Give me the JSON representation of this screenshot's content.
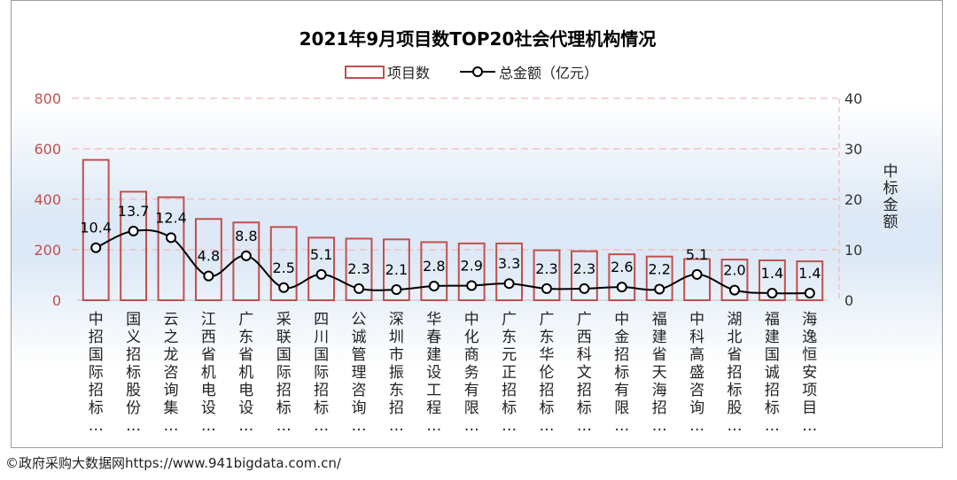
{
  "chart_data": {
    "type": "bar",
    "title": "2021年9月项目数TOP20社会代理机构情况",
    "legend": {
      "bar_label": "项目数",
      "line_label": "总金额（亿元）",
      "placement": "top"
    },
    "ylabel_right": "中标金额",
    "ylim_left": [
      0,
      800
    ],
    "ylim_right": [
      0,
      40
    ],
    "yticks_left": [
      "0",
      "200",
      "400",
      "600",
      "800"
    ],
    "yticks_right": [
      "0",
      "10",
      "20",
      "30",
      "40"
    ],
    "grid": true,
    "categories": [
      "中招国际招标…",
      "国义招标股份…",
      "云之龙咨询集…",
      "江西省机电设…",
      "广东省机电设…",
      "采联国际招标…",
      "四川国际招标…",
      "公诚管理咨询…",
      "深圳市振东招…",
      "华春建设工程…",
      "中化商务有限…",
      "广东元正招标…",
      "广东华伦招标…",
      "广西科文招标…",
      "中金招标有限…",
      "福建省天海招…",
      "中科高盛咨询…",
      "湖北省招标股…",
      "福建国诚招标…",
      "海逸恒安项目…"
    ],
    "series": [
      {
        "name": "项目数",
        "type": "bar",
        "axis": "left",
        "color": "#c0504d",
        "values": [
          556,
          430,
          408,
          322,
          308,
          290,
          248,
          244,
          241,
          230,
          225,
          225,
          198,
          194,
          182,
          173,
          163,
          161,
          158,
          154
        ]
      },
      {
        "name": "总金额（亿元）",
        "type": "line",
        "axis": "right",
        "color": "#000000",
        "values": [
          10.4,
          13.7,
          12.4,
          4.8,
          8.8,
          2.5,
          5.1,
          2.3,
          2.1,
          2.8,
          2.9,
          3.3,
          2.3,
          2.3,
          2.6,
          2.2,
          5.1,
          2.0,
          1.4,
          1.4
        ],
        "labels": [
          "10.4",
          "13.7",
          "12.4",
          "4.8",
          "8.8",
          "2.5",
          "5.1",
          "2.3",
          "2.1",
          "2.8",
          "2.9",
          "3.3",
          "2.3",
          "2.3",
          "2.6",
          "2.2",
          "5.1",
          "2.0",
          "1.4",
          "1.4"
        ]
      }
    ]
  },
  "footer": {
    "watermark": "©政府采购大数据网https://www.941bigdata.com.cn/"
  }
}
